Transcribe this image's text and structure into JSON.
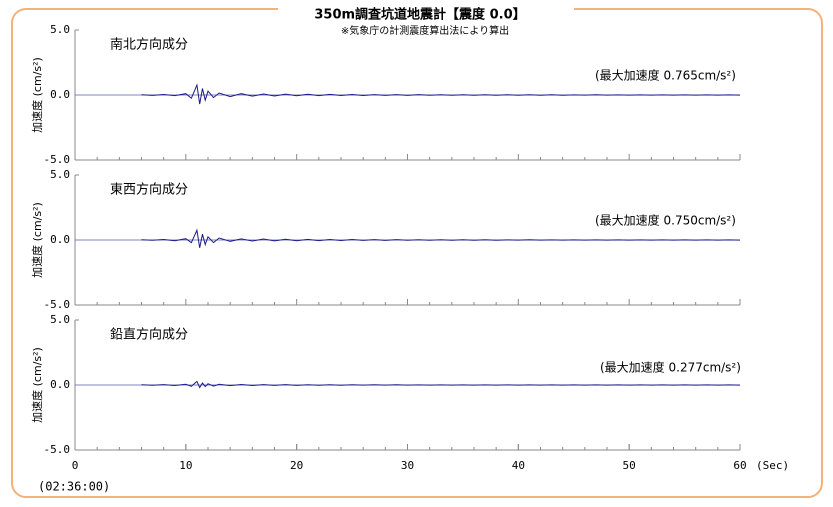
{
  "header": {
    "title": "350m調査坑道地震計【震度 0.0】",
    "subtitle": "※気象庁の計測震度算出法により算出",
    "time": "(02:36:00)"
  },
  "chart_data": [
    {
      "type": "line",
      "label": "南北方向成分",
      "annotation": "(最大加速度 0.765cm/s²)",
      "ylabel": "加速度 (cm/s²)",
      "xlim": [
        0,
        60
      ],
      "ylim": [
        -5,
        5
      ],
      "yticks": [
        {
          "value": -5,
          "label": "-5.0"
        },
        {
          "value": 0,
          "label": "0.0"
        },
        {
          "value": 5,
          "label": "5.0"
        }
      ],
      "color": "#1a1a8c",
      "x": [
        6,
        7,
        8,
        9,
        10,
        10.5,
        11,
        11.25,
        11.5,
        11.75,
        12,
        12.5,
        13,
        14,
        15,
        16,
        17,
        18,
        19,
        20,
        21,
        22,
        23,
        24,
        25,
        26,
        27,
        28,
        29,
        30,
        31,
        32,
        33,
        34,
        35,
        36,
        37,
        38,
        39,
        40,
        41,
        42,
        43,
        44,
        45,
        46,
        47,
        48,
        49,
        50,
        51,
        52,
        53,
        54,
        55,
        56,
        57,
        58,
        59,
        60
      ],
      "values": [
        0.02,
        -0.03,
        0.04,
        -0.05,
        0.1,
        -0.25,
        0.765,
        -0.7,
        0.5,
        -0.4,
        0.3,
        -0.2,
        0.15,
        -0.12,
        0.1,
        -0.09,
        0.08,
        -0.08,
        0.07,
        -0.06,
        0.06,
        -0.05,
        0.05,
        -0.04,
        0.04,
        -0.04,
        0.03,
        -0.03,
        0.03,
        -0.03,
        0.03,
        -0.02,
        0.02,
        -0.02,
        0.02,
        -0.02,
        0.02,
        -0.02,
        0.02,
        -0.02,
        0.02,
        -0.02,
        0.02,
        -0.02,
        0.01,
        -0.01,
        0.02,
        -0.01,
        0.01,
        -0.01,
        0.01,
        -0.01,
        0.01,
        -0.01,
        0.01,
        -0.01,
        0.01,
        -0.01,
        0.01,
        -0.01
      ]
    },
    {
      "type": "line",
      "label": "東西方向成分",
      "annotation": "(最大加速度 0.750cm/s²)",
      "ylabel": "加速度 (cm/s²)",
      "xlim": [
        0,
        60
      ],
      "ylim": [
        -5,
        5
      ],
      "yticks": [
        {
          "value": -5,
          "label": "-5.0"
        },
        {
          "value": 0,
          "label": "0.0"
        },
        {
          "value": 5,
          "label": "5.0"
        }
      ],
      "color": "#1a1a8c",
      "x": [
        6,
        7,
        8,
        9,
        10,
        10.5,
        11,
        11.25,
        11.5,
        11.75,
        12,
        12.5,
        13,
        14,
        15,
        16,
        17,
        18,
        19,
        20,
        21,
        22,
        23,
        24,
        25,
        26,
        27,
        28,
        29,
        30,
        31,
        32,
        33,
        34,
        35,
        36,
        37,
        38,
        39,
        40,
        41,
        42,
        43,
        44,
        45,
        46,
        47,
        48,
        49,
        50,
        51,
        52,
        53,
        54,
        55,
        56,
        57,
        58,
        59,
        60
      ],
      "values": [
        0.02,
        -0.02,
        0.04,
        -0.06,
        0.1,
        -0.2,
        0.75,
        -0.6,
        0.45,
        -0.35,
        0.25,
        -0.2,
        0.15,
        -0.1,
        0.09,
        -0.08,
        0.08,
        -0.07,
        0.06,
        -0.06,
        0.05,
        -0.05,
        0.04,
        -0.04,
        0.04,
        -0.03,
        0.03,
        -0.03,
        0.03,
        -0.02,
        0.02,
        -0.02,
        0.02,
        -0.02,
        0.02,
        -0.02,
        0.02,
        -0.02,
        0.01,
        -0.01,
        0.02,
        -0.01,
        0.01,
        -0.01,
        0.01,
        -0.01,
        0.01,
        -0.01,
        0.01,
        -0.01,
        0.01,
        -0.01,
        0.01,
        -0.01,
        0.01,
        -0.01,
        0.01,
        -0.01,
        0.01,
        -0.01
      ]
    },
    {
      "type": "line",
      "label": "鉛直方向成分",
      "annotation": "(最大加速度 0.277cm/s²)",
      "ylabel": "加速度 (cm/s²)",
      "xlim": [
        0,
        60
      ],
      "ylim": [
        -5,
        5
      ],
      "yticks": [
        {
          "value": -5,
          "label": "-5.0"
        },
        {
          "value": 0,
          "label": "0.0"
        },
        {
          "value": 5,
          "label": "5.0"
        }
      ],
      "color": "#1a1a8c",
      "xticks": [
        0,
        10,
        20,
        30,
        40,
        50,
        60
      ],
      "xlabel": "(Sec)",
      "x": [
        6,
        7,
        8,
        9,
        10,
        10.5,
        11,
        11.25,
        11.5,
        11.75,
        12,
        12.5,
        13,
        14,
        15,
        16,
        17,
        18,
        19,
        20,
        21,
        22,
        23,
        24,
        25,
        26,
        27,
        28,
        29,
        30,
        31,
        32,
        33,
        34,
        35,
        36,
        37,
        38,
        39,
        40,
        41,
        42,
        43,
        44,
        45,
        46,
        47,
        48,
        49,
        50,
        51,
        52,
        53,
        54,
        55,
        56,
        57,
        58,
        59,
        60
      ],
      "values": [
        0.02,
        -0.02,
        0.03,
        -0.04,
        0.06,
        -0.1,
        0.277,
        -0.2,
        0.15,
        -0.12,
        0.1,
        -0.08,
        0.06,
        -0.05,
        0.04,
        -0.04,
        0.03,
        -0.03,
        0.03,
        -0.03,
        0.02,
        -0.02,
        0.02,
        -0.02,
        0.02,
        -0.01,
        0.02,
        -0.01,
        0.02,
        -0.01,
        0.01,
        -0.01,
        0.01,
        -0.01,
        0.01,
        -0.01,
        0.01,
        -0.01,
        0.01,
        -0.01,
        0.01,
        -0.01,
        0.01,
        -0.01,
        0.01,
        -0.01,
        0.01,
        -0.01,
        0.01,
        -0.01,
        0.01,
        -0.01,
        0.01,
        -0.01,
        0.01,
        -0.01,
        0.01,
        -0.01,
        0.01,
        -0.01
      ]
    }
  ]
}
